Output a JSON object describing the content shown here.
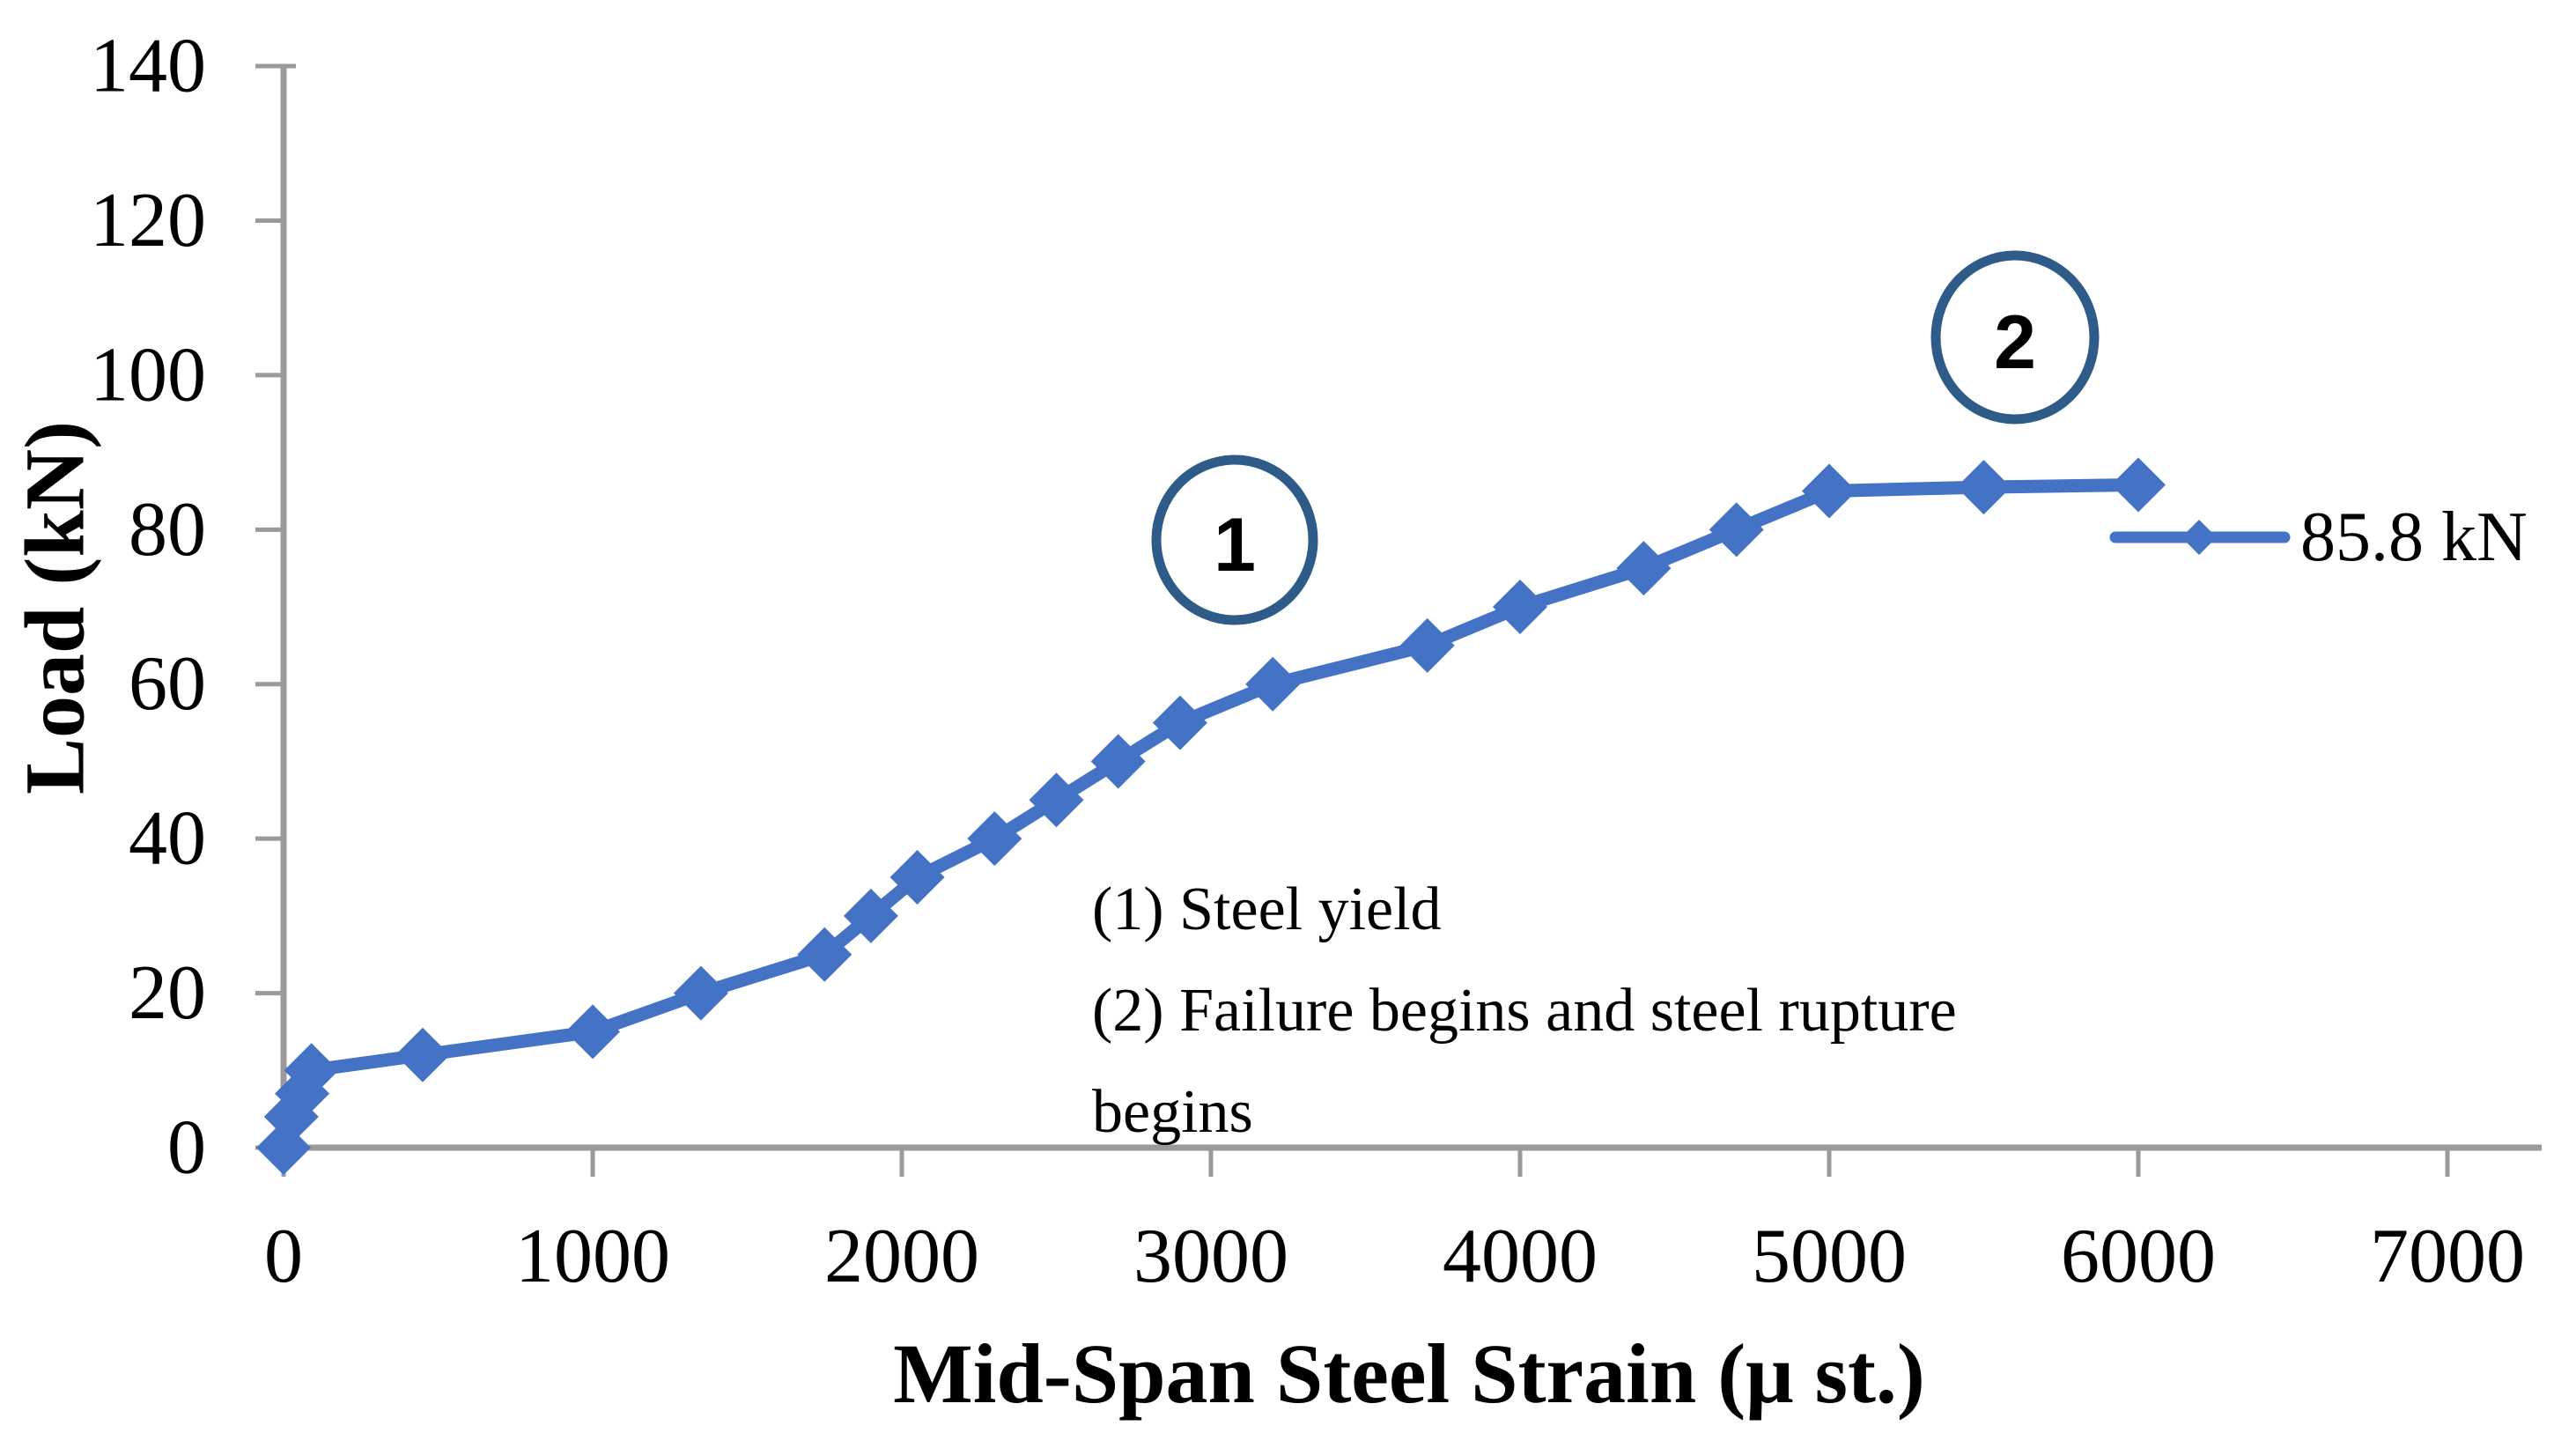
{
  "figure": {
    "kind": "scientific line chart",
    "background": "#FFFFFF"
  },
  "chart_data": {
    "type": "line",
    "title": "",
    "xlabel": "Mid-Span Steel Strain (μ st.)",
    "ylabel": "Load  (kN)",
    "xlim": [
      0,
      7000
    ],
    "ylim": [
      0,
      140
    ],
    "xticks": [
      0,
      1000,
      2000,
      3000,
      4000,
      5000,
      6000,
      7000
    ],
    "yticks": [
      0,
      20,
      40,
      60,
      80,
      100,
      120,
      140
    ],
    "grid": false,
    "legend_position": "right-middle",
    "series": [
      {
        "name": "85.8 kN",
        "color": "#4472C4",
        "marker": "diamond",
        "x": [
          0,
          25,
          60,
          90,
          450,
          1000,
          1350,
          1750,
          1900,
          2050,
          2300,
          2500,
          2700,
          2900,
          3200,
          3700,
          4000,
          4400,
          4700,
          5000,
          5500,
          6000
        ],
        "y": [
          0,
          4,
          7,
          10,
          12,
          15,
          20,
          25,
          30,
          35,
          40,
          45,
          50,
          55,
          60,
          65,
          70,
          75,
          80,
          85,
          85.5,
          85.8
        ]
      }
    ],
    "annotations": [
      {
        "marker": "1",
        "meaning": "(1) Steel yield"
      },
      {
        "marker": "2",
        "meaning": "(2) Failure begins and steel rupture begins"
      }
    ],
    "peak_load_label": "85.8 kN"
  },
  "legend": {
    "label": "85.8 kN"
  },
  "annotation_block": {
    "line1": "(1) Steel yield",
    "line2": "(2) Failure begins and steel rupture",
    "line3": "begins"
  },
  "circle_labels": {
    "first": "1",
    "second": "2"
  },
  "colors": {
    "series": "#4472C4",
    "annotation_circle": "#2E5B88",
    "annotation_number": "#FF0000",
    "axis": "#9A9A9A",
    "text": "#000000",
    "background": "#FFFFFF"
  }
}
